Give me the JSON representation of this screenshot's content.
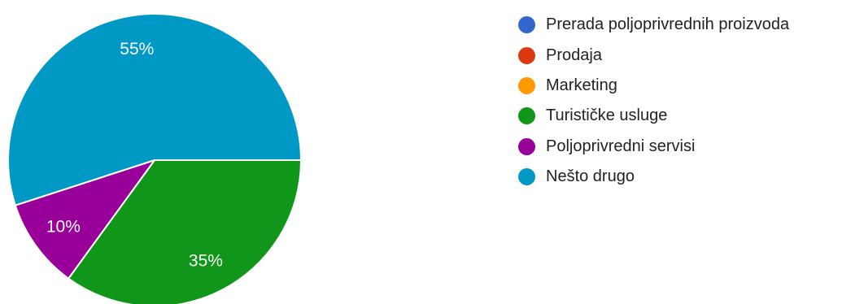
{
  "chart_data": {
    "type": "pie",
    "title": "",
    "categories": [
      "Prerada poljoprivrednih proizvoda",
      "Prodaja",
      "Marketing",
      "Turističke usluge",
      "Poljoprivredni servisi",
      "Nešto drugo"
    ],
    "values": [
      0,
      0,
      0,
      35,
      10,
      55
    ],
    "data_labels": [
      "",
      "",
      "",
      "35%",
      "10%",
      "55%"
    ],
    "colors": [
      "#3366cc",
      "#dc3912",
      "#ff9900",
      "#109618",
      "#990099",
      "#0099c6"
    ],
    "legend": "right"
  }
}
